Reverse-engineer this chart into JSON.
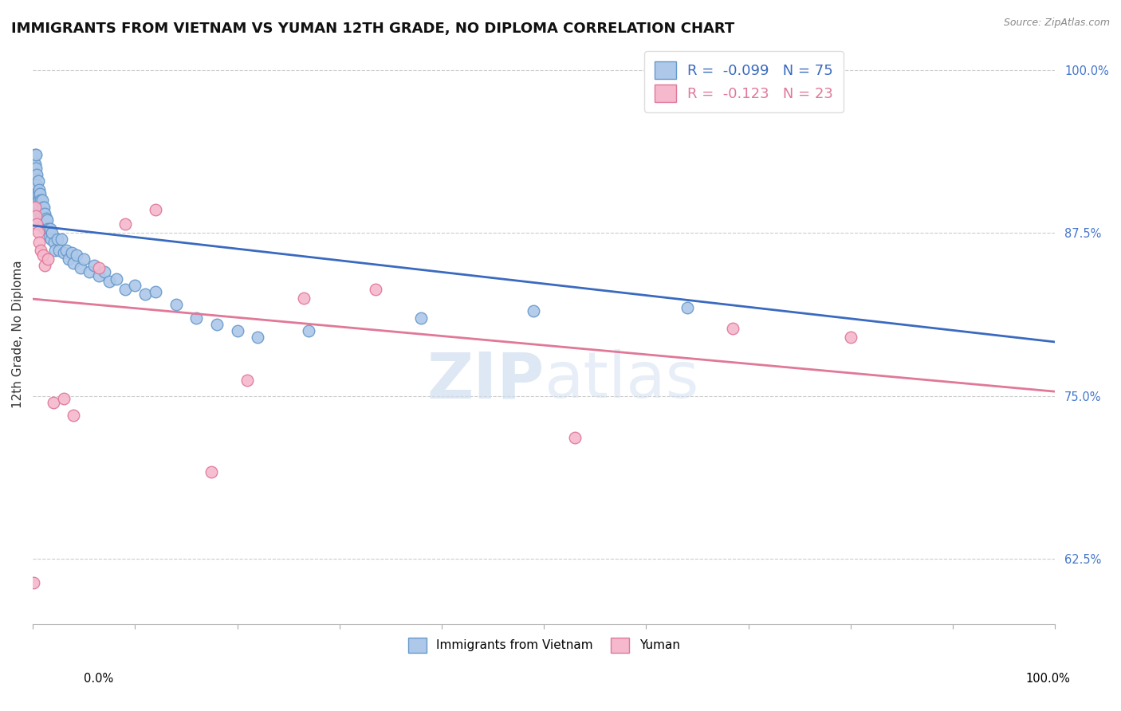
{
  "title": "IMMIGRANTS FROM VIETNAM VS YUMAN 12TH GRADE, NO DIPLOMA CORRELATION CHART",
  "source": "Source: ZipAtlas.com",
  "ylabel": "12th Grade, No Diploma",
  "ytick_vals": [
    0.625,
    0.75,
    0.875,
    1.0
  ],
  "ytick_labels": [
    "62.5%",
    "75.0%",
    "87.5%",
    "100.0%"
  ],
  "legend_blue_r": "-0.099",
  "legend_blue_n": "75",
  "legend_pink_r": "-0.123",
  "legend_pink_n": "23",
  "legend_blue_label": "Immigrants from Vietnam",
  "legend_pink_label": "Yuman",
  "blue_color": "#adc8e8",
  "blue_edge": "#6699cc",
  "pink_color": "#f5b8cc",
  "pink_edge": "#e07898",
  "blue_line_color": "#3a6abf",
  "pink_line_color": "#e07898",
  "watermark_color": "#d0dff0",
  "blue_x": [
    0.001,
    0.001,
    0.001,
    0.002,
    0.002,
    0.002,
    0.002,
    0.003,
    0.003,
    0.003,
    0.003,
    0.004,
    0.004,
    0.004,
    0.004,
    0.005,
    0.005,
    0.005,
    0.006,
    0.006,
    0.006,
    0.007,
    0.007,
    0.007,
    0.008,
    0.008,
    0.009,
    0.009,
    0.009,
    0.01,
    0.01,
    0.011,
    0.011,
    0.012,
    0.012,
    0.013,
    0.014,
    0.015,
    0.016,
    0.017,
    0.018,
    0.019,
    0.021,
    0.022,
    0.024,
    0.026,
    0.028,
    0.03,
    0.033,
    0.035,
    0.038,
    0.04,
    0.043,
    0.047,
    0.05,
    0.055,
    0.06,
    0.065,
    0.07,
    0.075,
    0.082,
    0.09,
    0.1,
    0.11,
    0.12,
    0.14,
    0.16,
    0.18,
    0.2,
    0.22,
    0.27,
    0.38,
    0.49,
    0.64,
    0.72
  ],
  "blue_y": [
    0.93,
    0.92,
    0.91,
    0.935,
    0.928,
    0.918,
    0.9,
    0.935,
    0.925,
    0.912,
    0.905,
    0.92,
    0.912,
    0.905,
    0.895,
    0.915,
    0.905,
    0.892,
    0.908,
    0.9,
    0.89,
    0.905,
    0.895,
    0.885,
    0.9,
    0.888,
    0.9,
    0.89,
    0.88,
    0.895,
    0.885,
    0.895,
    0.882,
    0.89,
    0.878,
    0.886,
    0.885,
    0.878,
    0.872,
    0.878,
    0.87,
    0.875,
    0.868,
    0.862,
    0.87,
    0.862,
    0.87,
    0.86,
    0.862,
    0.855,
    0.86,
    0.852,
    0.858,
    0.848,
    0.855,
    0.845,
    0.85,
    0.842,
    0.845,
    0.838,
    0.84,
    0.832,
    0.835,
    0.828,
    0.83,
    0.82,
    0.81,
    0.805,
    0.8,
    0.795,
    0.8,
    0.81,
    0.815,
    0.818,
    1.0
  ],
  "pink_x": [
    0.001,
    0.002,
    0.003,
    0.004,
    0.005,
    0.006,
    0.008,
    0.01,
    0.012,
    0.015,
    0.02,
    0.03,
    0.04,
    0.065,
    0.09,
    0.12,
    0.175,
    0.21,
    0.265,
    0.335,
    0.53,
    0.685,
    0.8
  ],
  "pink_y": [
    0.607,
    0.895,
    0.888,
    0.882,
    0.876,
    0.868,
    0.862,
    0.858,
    0.85,
    0.855,
    0.745,
    0.748,
    0.735,
    0.848,
    0.882,
    0.893,
    0.692,
    0.762,
    0.825,
    0.832,
    0.718,
    0.802,
    0.795
  ],
  "xlim": [
    0.0,
    1.0
  ],
  "ylim": [
    0.575,
    1.02
  ],
  "title_fontsize": 13,
  "axis_fontsize": 11,
  "tick_fontsize": 10.5,
  "marker_size": 110
}
